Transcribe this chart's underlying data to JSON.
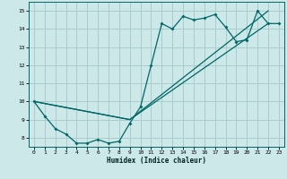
{
  "xlabel": "Humidex (Indice chaleur)",
  "bg_color": "#cce8e8",
  "grid_color": "#aacccc",
  "line_color": "#006666",
  "xlim": [
    -0.5,
    23.5
  ],
  "ylim": [
    7.5,
    15.5
  ],
  "xticks": [
    0,
    1,
    2,
    3,
    4,
    5,
    6,
    7,
    8,
    9,
    10,
    11,
    12,
    13,
    14,
    15,
    16,
    17,
    18,
    19,
    20,
    21,
    22,
    23
  ],
  "yticks": [
    8,
    9,
    10,
    11,
    12,
    13,
    14,
    15
  ],
  "line1_x": [
    0,
    1,
    2,
    3,
    4,
    5,
    6,
    7,
    8,
    9,
    10,
    11,
    12,
    13,
    14,
    15,
    16,
    17,
    18,
    19,
    20,
    21,
    22,
    23
  ],
  "line1_y": [
    10.0,
    9.2,
    8.5,
    8.2,
    7.7,
    7.7,
    7.9,
    7.7,
    7.8,
    8.8,
    9.7,
    12.0,
    14.3,
    14.0,
    14.7,
    14.5,
    14.6,
    14.8,
    14.1,
    13.3,
    13.4,
    15.0,
    14.3,
    14.3
  ],
  "line2_x": [
    0,
    9,
    22
  ],
  "line2_y": [
    10.0,
    9.0,
    15.0
  ],
  "line3_x": [
    0,
    9,
    22
  ],
  "line3_y": [
    10.0,
    9.0,
    14.3
  ]
}
